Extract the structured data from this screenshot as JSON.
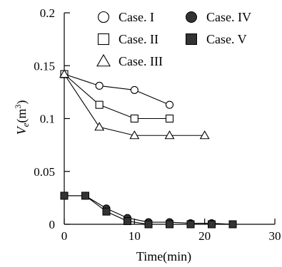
{
  "chart_data": {
    "type": "line",
    "xlabel": "Time(min)",
    "ylabel_main": "V",
    "ylabel_sub": "e",
    "ylabel_unit_open": "(m",
    "ylabel_unit_exp": "3",
    "ylabel_unit_close": ")",
    "xlim": [
      0,
      30
    ],
    "ylim": [
      0,
      0.2
    ],
    "xticks": [
      0,
      10,
      20,
      30
    ],
    "xtick_labels": [
      "0",
      "10",
      "20",
      "30"
    ],
    "yticks": [
      0,
      0.05,
      0.1,
      0.15,
      0.2
    ],
    "ytick_labels": [
      "0",
      "0.05",
      "0.1",
      "0.15",
      "0.2"
    ],
    "grid": false,
    "legend_position": "top",
    "series": [
      {
        "name": "Case. I",
        "marker": "circle-open",
        "x": [
          0,
          5,
          10,
          15
        ],
        "y": [
          0.142,
          0.131,
          0.127,
          0.113
        ]
      },
      {
        "name": "Case. II",
        "marker": "square-open",
        "x": [
          0,
          5,
          10,
          15
        ],
        "y": [
          0.142,
          0.113,
          0.1,
          0.1
        ]
      },
      {
        "name": "Case. III",
        "marker": "triangle-open",
        "x": [
          0,
          5,
          10,
          15,
          20
        ],
        "y": [
          0.142,
          0.092,
          0.084,
          0.084,
          0.084
        ]
      },
      {
        "name": "Case. IV",
        "marker": "circle-filled",
        "x": [
          0,
          3,
          6,
          9,
          12,
          15,
          18,
          21,
          24
        ],
        "y": [
          0.027,
          0.027,
          0.015,
          0.006,
          0.002,
          0.002,
          0.001,
          0.001,
          0.0
        ]
      },
      {
        "name": "Case. V",
        "marker": "square-filled",
        "x": [
          0,
          3,
          6,
          9,
          12,
          15,
          18,
          21,
          24
        ],
        "y": [
          0.027,
          0.027,
          0.012,
          0.003,
          0.0,
          0.0,
          0.0,
          0.0,
          0.0
        ]
      }
    ]
  }
}
